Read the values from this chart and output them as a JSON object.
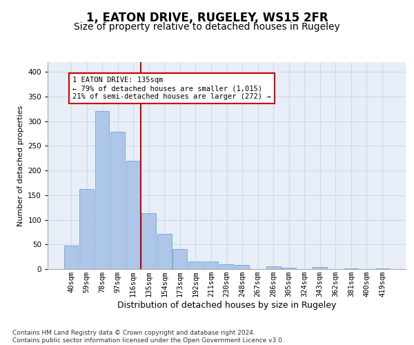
{
  "title": "1, EATON DRIVE, RUGELEY, WS15 2FR",
  "subtitle": "Size of property relative to detached houses in Rugeley",
  "xlabel": "Distribution of detached houses by size in Rugeley",
  "ylabel": "Number of detached properties",
  "bar_labels": [
    "40sqm",
    "59sqm",
    "78sqm",
    "97sqm",
    "116sqm",
    "135sqm",
    "154sqm",
    "173sqm",
    "192sqm",
    "211sqm",
    "230sqm",
    "248sqm",
    "267sqm",
    "286sqm",
    "305sqm",
    "324sqm",
    "343sqm",
    "362sqm",
    "381sqm",
    "400sqm",
    "419sqm"
  ],
  "bar_values": [
    47,
    163,
    320,
    278,
    220,
    113,
    71,
    40,
    16,
    15,
    10,
    8,
    0,
    5,
    3,
    0,
    4,
    0,
    2,
    0,
    2
  ],
  "bar_color": "#aec6e8",
  "bar_edge_color": "#5b9bd5",
  "vline_color": "#cc0000",
  "annotation_text": "1 EATON DRIVE: 135sqm\n← 79% of detached houses are smaller (1,015)\n21% of semi-detached houses are larger (272) →",
  "annotation_box_color": "#ffffff",
  "annotation_box_edge": "#cc0000",
  "ylim": [
    0,
    420
  ],
  "yticks": [
    0,
    50,
    100,
    150,
    200,
    250,
    300,
    350,
    400
  ],
  "grid_color": "#d0d8e8",
  "background_color": "#e8eef8",
  "footer_text": "Contains HM Land Registry data © Crown copyright and database right 2024.\nContains public sector information licensed under the Open Government Licence v3.0.",
  "title_fontsize": 12,
  "subtitle_fontsize": 10,
  "xlabel_fontsize": 9,
  "ylabel_fontsize": 8,
  "tick_fontsize": 7.5,
  "annotation_fontsize": 7.5,
  "footer_fontsize": 6.5
}
